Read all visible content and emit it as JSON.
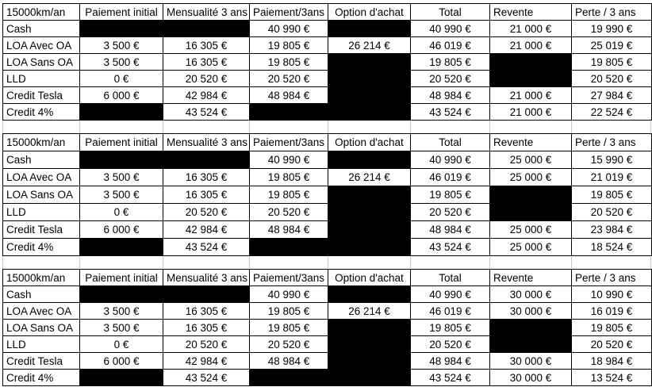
{
  "colors": {
    "background": "#ffffff",
    "text": "#000000",
    "table_border": "#000000",
    "redaction": "#000000",
    "gridline": "#c8c8c8"
  },
  "columns": [
    {
      "label": "15000km/an",
      "align": "left"
    },
    {
      "label": "Paiement initial",
      "align": "center"
    },
    {
      "label": "Mensualité 3 ans",
      "align": "center"
    },
    {
      "label": "Paiement/3ans",
      "align": "center"
    },
    {
      "label": "Option d'achat",
      "align": "center"
    },
    {
      "label": "Total",
      "align": "center"
    },
    {
      "label": "Revente",
      "align": "left"
    },
    {
      "label": "Perte / 3 ans",
      "align": "left"
    }
  ],
  "tables": [
    {
      "revente_assumption": "21 000 €",
      "rows": [
        {
          "label": "Cash",
          "cells": [
            {
              "redacted": true
            },
            {
              "redacted": true
            },
            {
              "v": "40 990 €"
            },
            {
              "redacted": true
            },
            {
              "v": "40 990 €"
            },
            {
              "v": "21 000 €"
            },
            {
              "v": "19 990 €"
            }
          ]
        },
        {
          "label": "LOA Avec OA",
          "cells": [
            {
              "v": "3 500 €"
            },
            {
              "v": "16 305 €"
            },
            {
              "v": "19 805 €"
            },
            {
              "v": "26 214 €"
            },
            {
              "v": "46 019 €"
            },
            {
              "v": "21 000 €"
            },
            {
              "v": "25 019 €"
            }
          ]
        },
        {
          "label": "LOA Sans OA",
          "cells": [
            {
              "v": "3 500 €"
            },
            {
              "v": "16 305 €"
            },
            {
              "v": "19 805 €"
            },
            {
              "redacted": true
            },
            {
              "v": "19 805 €"
            },
            {
              "redacted": true
            },
            {
              "v": "19 805 €"
            }
          ]
        },
        {
          "label": "LLD",
          "cells": [
            {
              "v": "0 €"
            },
            {
              "v": "20 520 €"
            },
            {
              "v": "20 520 €"
            },
            {
              "redacted": true
            },
            {
              "v": "20 520 €"
            },
            {
              "redacted": true
            },
            {
              "v": "20 520 €"
            }
          ]
        },
        {
          "label": "Credit Tesla",
          "cells": [
            {
              "v": "6 000 €"
            },
            {
              "v": "42 984 €"
            },
            {
              "v": "48 984 €"
            },
            {
              "redacted": true
            },
            {
              "v": "48 984 €"
            },
            {
              "v": "21 000 €"
            },
            {
              "v": "27 984 €"
            }
          ]
        },
        {
          "label": "Credit 4%",
          "cells": [
            {
              "redacted": true
            },
            {
              "v": "43 524 €"
            },
            {
              "redacted": true
            },
            {
              "redacted": true
            },
            {
              "v": "43 524 €"
            },
            {
              "v": "21 000 €"
            },
            {
              "v": "22 524 €"
            }
          ]
        }
      ]
    },
    {
      "revente_assumption": "25 000 €",
      "rows": [
        {
          "label": "Cash",
          "cells": [
            {
              "redacted": true
            },
            {
              "redacted": true
            },
            {
              "v": "40 990 €"
            },
            {
              "redacted": true
            },
            {
              "v": "40 990 €"
            },
            {
              "v": "25 000 €"
            },
            {
              "v": "15 990 €"
            }
          ]
        },
        {
          "label": "LOA Avec OA",
          "cells": [
            {
              "v": "3 500 €"
            },
            {
              "v": "16 305 €"
            },
            {
              "v": "19 805 €"
            },
            {
              "v": "26 214 €"
            },
            {
              "v": "46 019 €"
            },
            {
              "v": "25 000 €"
            },
            {
              "v": "21 019 €"
            }
          ]
        },
        {
          "label": "LOA Sans OA",
          "cells": [
            {
              "v": "3 500 €"
            },
            {
              "v": "16 305 €"
            },
            {
              "v": "19 805 €"
            },
            {
              "redacted": true
            },
            {
              "v": "19 805 €"
            },
            {
              "redacted": true
            },
            {
              "v": "19 805 €"
            }
          ]
        },
        {
          "label": "LLD",
          "cells": [
            {
              "v": "0 €"
            },
            {
              "v": "20 520 €"
            },
            {
              "v": "20 520 €"
            },
            {
              "redacted": true
            },
            {
              "v": "20 520 €"
            },
            {
              "redacted": true
            },
            {
              "v": "20 520 €"
            }
          ]
        },
        {
          "label": "Credit Tesla",
          "cells": [
            {
              "v": "6 000 €"
            },
            {
              "v": "42 984 €"
            },
            {
              "v": "48 984 €"
            },
            {
              "redacted": true
            },
            {
              "v": "48 984 €"
            },
            {
              "v": "25 000 €"
            },
            {
              "v": "23 984 €"
            }
          ]
        },
        {
          "label": "Credit 4%",
          "cells": [
            {
              "redacted": true
            },
            {
              "v": "43 524 €"
            },
            {
              "redacted": true
            },
            {
              "redacted": true
            },
            {
              "v": "43 524 €"
            },
            {
              "v": "25 000 €"
            },
            {
              "v": "18 524 €"
            }
          ]
        }
      ]
    },
    {
      "revente_assumption": "30 000 €",
      "rows": [
        {
          "label": "Cash",
          "cells": [
            {
              "redacted": true
            },
            {
              "redacted": true
            },
            {
              "v": "40 990 €"
            },
            {
              "redacted": true
            },
            {
              "v": "40 990 €"
            },
            {
              "v": "30 000 €"
            },
            {
              "v": "10 990 €"
            }
          ]
        },
        {
          "label": "LOA Avec OA",
          "cells": [
            {
              "v": "3 500 €"
            },
            {
              "v": "16 305 €"
            },
            {
              "v": "19 805 €"
            },
            {
              "v": "26 214 €"
            },
            {
              "v": "46 019 €"
            },
            {
              "v": "30 000 €"
            },
            {
              "v": "16 019 €"
            }
          ]
        },
        {
          "label": "LOA Sans OA",
          "cells": [
            {
              "v": "3 500 €"
            },
            {
              "v": "16 305 €"
            },
            {
              "v": "19 805 €"
            },
            {
              "redacted": true
            },
            {
              "v": "19 805 €"
            },
            {
              "redacted": true
            },
            {
              "v": "19 805 €"
            }
          ]
        },
        {
          "label": "LLD",
          "cells": [
            {
              "v": "0 €"
            },
            {
              "v": "20 520 €"
            },
            {
              "v": "20 520 €"
            },
            {
              "redacted": true
            },
            {
              "v": "20 520 €"
            },
            {
              "redacted": true
            },
            {
              "v": "20 520 €"
            }
          ]
        },
        {
          "label": "Credit Tesla",
          "cells": [
            {
              "v": "6 000 €"
            },
            {
              "v": "42 984 €"
            },
            {
              "v": "48 984 €"
            },
            {
              "redacted": true
            },
            {
              "v": "48 984 €"
            },
            {
              "v": "30 000 €"
            },
            {
              "v": "18 984 €"
            }
          ]
        },
        {
          "label": "Credit 4%",
          "cells": [
            {
              "redacted": true
            },
            {
              "v": "43 524 €"
            },
            {
              "redacted": true
            },
            {
              "redacted": true
            },
            {
              "v": "43 524 €"
            },
            {
              "v": "30 000 €"
            },
            {
              "v": "13 524 €"
            }
          ]
        }
      ]
    }
  ]
}
